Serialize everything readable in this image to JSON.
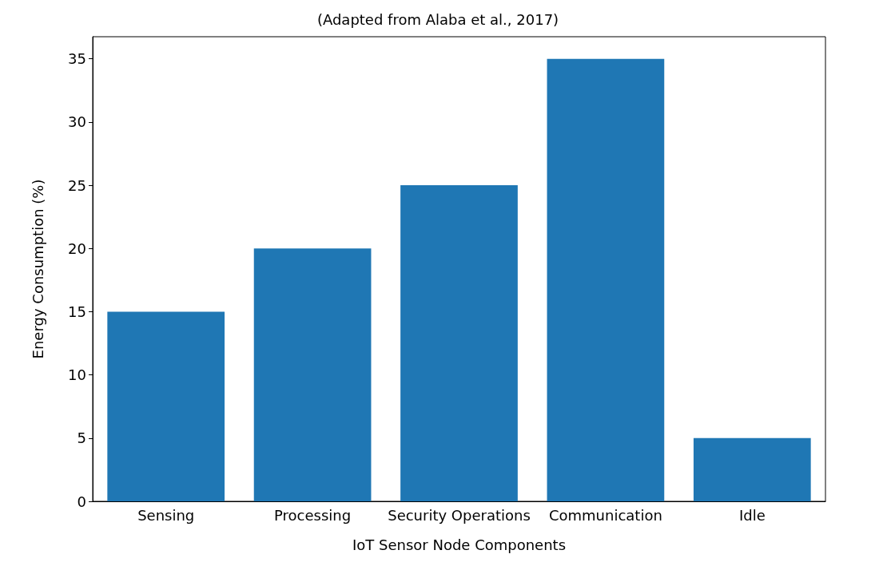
{
  "chart_data": {
    "type": "bar",
    "subtitle": "(Adapted from Alaba et al., 2017)",
    "xlabel": "IoT Sensor Node Components",
    "ylabel": "Energy Consumption (%)",
    "categories": [
      "Sensing",
      "Processing",
      "Security Operations",
      "Communication",
      "Idle"
    ],
    "values": [
      15,
      20,
      25,
      35,
      5
    ],
    "color": "#1f77b4",
    "ylim": [
      0,
      36.75
    ],
    "yticks": [
      0,
      5,
      10,
      15,
      20,
      25,
      30,
      35
    ],
    "grid": false
  }
}
